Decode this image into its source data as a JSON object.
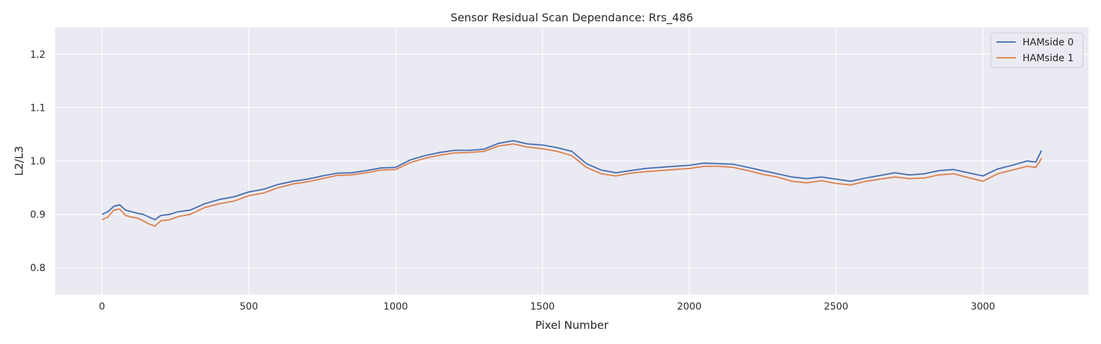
{
  "chart_data": {
    "type": "line",
    "title": "Sensor Residual Scan Dependance: Rrs_486",
    "xlabel": "Pixel Number",
    "ylabel": "L2/L3",
    "xlim": [
      -160,
      3360
    ],
    "ylim": [
      0.75,
      1.25
    ],
    "x_ticks": [
      0,
      500,
      1000,
      1500,
      2000,
      2500,
      3000
    ],
    "x_tick_labels": [
      "0",
      "500",
      "1000",
      "1500",
      "2000",
      "2500",
      "3000"
    ],
    "y_ticks": [
      0.8,
      0.9,
      1.0,
      1.1,
      1.2
    ],
    "y_tick_labels": [
      "0.8",
      "0.9",
      "1.0",
      "1.1",
      "1.2"
    ],
    "grid": true,
    "legend_position": "top-right",
    "background_color": "#eaeaf2",
    "grid_color": "#ffffff",
    "series": [
      {
        "name": "HAMside 0",
        "color": "#4c72b0",
        "x": [
          0,
          20,
          40,
          60,
          80,
          100,
          120,
          140,
          160,
          180,
          200,
          230,
          260,
          300,
          350,
          400,
          450,
          500,
          550,
          600,
          650,
          700,
          750,
          800,
          850,
          900,
          950,
          1000,
          1050,
          1100,
          1150,
          1200,
          1250,
          1300,
          1350,
          1400,
          1450,
          1500,
          1550,
          1600,
          1650,
          1700,
          1750,
          1800,
          1850,
          1900,
          1950,
          2000,
          2050,
          2100,
          2150,
          2200,
          2250,
          2300,
          2350,
          2400,
          2450,
          2500,
          2550,
          2600,
          2650,
          2700,
          2750,
          2800,
          2850,
          2900,
          2950,
          3000,
          3050,
          3100,
          3150,
          3180,
          3200
        ],
        "values": [
          0.9,
          0.905,
          0.915,
          0.918,
          0.908,
          0.905,
          0.902,
          0.9,
          0.895,
          0.89,
          0.898,
          0.9,
          0.905,
          0.908,
          0.92,
          0.928,
          0.933,
          0.942,
          0.947,
          0.956,
          0.962,
          0.966,
          0.972,
          0.977,
          0.978,
          0.982,
          0.987,
          0.988,
          1.002,
          1.01,
          1.016,
          1.02,
          1.02,
          1.022,
          1.033,
          1.038,
          1.032,
          1.03,
          1.025,
          1.018,
          0.995,
          0.983,
          0.978,
          0.982,
          0.986,
          0.988,
          0.99,
          0.992,
          0.996,
          0.995,
          0.994,
          0.988,
          0.982,
          0.976,
          0.97,
          0.967,
          0.97,
          0.966,
          0.962,
          0.968,
          0.973,
          0.978,
          0.974,
          0.976,
          0.982,
          0.984,
          0.978,
          0.972,
          0.985,
          0.992,
          1.0,
          0.998,
          1.02
        ]
      },
      {
        "name": "HAMside 1",
        "color": "#dd8452",
        "x": [
          0,
          20,
          40,
          60,
          80,
          100,
          120,
          140,
          160,
          180,
          200,
          230,
          260,
          300,
          350,
          400,
          450,
          500,
          550,
          600,
          650,
          700,
          750,
          800,
          850,
          900,
          950,
          1000,
          1050,
          1100,
          1150,
          1200,
          1250,
          1300,
          1350,
          1400,
          1450,
          1500,
          1550,
          1600,
          1650,
          1700,
          1750,
          1800,
          1850,
          1900,
          1950,
          2000,
          2050,
          2100,
          2150,
          2200,
          2250,
          2300,
          2350,
          2400,
          2450,
          2500,
          2550,
          2600,
          2650,
          2700,
          2750,
          2800,
          2850,
          2900,
          2950,
          3000,
          3050,
          3100,
          3150,
          3180,
          3200
        ],
        "values": [
          0.89,
          0.895,
          0.908,
          0.91,
          0.898,
          0.895,
          0.893,
          0.888,
          0.882,
          0.878,
          0.888,
          0.89,
          0.896,
          0.9,
          0.913,
          0.92,
          0.925,
          0.935,
          0.94,
          0.95,
          0.957,
          0.961,
          0.967,
          0.973,
          0.974,
          0.978,
          0.983,
          0.984,
          0.997,
          1.005,
          1.011,
          1.015,
          1.016,
          1.018,
          1.028,
          1.032,
          1.026,
          1.023,
          1.018,
          1.01,
          0.988,
          0.976,
          0.972,
          0.977,
          0.98,
          0.982,
          0.984,
          0.986,
          0.99,
          0.99,
          0.988,
          0.982,
          0.975,
          0.97,
          0.962,
          0.959,
          0.963,
          0.958,
          0.955,
          0.962,
          0.966,
          0.97,
          0.967,
          0.968,
          0.974,
          0.976,
          0.969,
          0.962,
          0.976,
          0.983,
          0.99,
          0.988,
          1.005
        ]
      }
    ]
  }
}
